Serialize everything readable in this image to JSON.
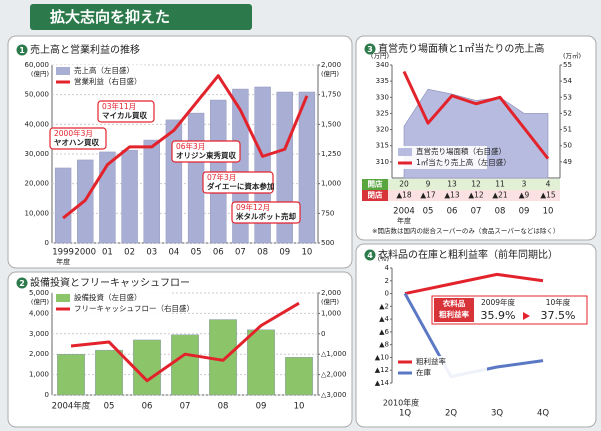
{
  "header": {
    "title": "拡大志向を抑えた"
  },
  "chart_data": [
    {
      "type": "combo",
      "number": 1,
      "title": "売上高と営業利益の推移",
      "categories": [
        "1999",
        "2000",
        "01",
        "02",
        "03",
        "04",
        "05",
        "06",
        "07",
        "08",
        "09",
        "10"
      ],
      "x_unit": "年度",
      "y_unit": "(億円)",
      "y2_unit": "(億円)",
      "ylim": [
        0,
        60000
      ],
      "yticks": [
        0,
        {
          "value": 10000,
          "label": "10,000"
        },
        {
          "value": 20000,
          "label": "20,000"
        },
        {
          "value": 30000,
          "label": "30,000"
        },
        {
          "value": 40000,
          "label": "40,000"
        },
        {
          "value": 50000,
          "label": "50,000"
        },
        {
          "value": 60000,
          "label": "60,000"
        }
      ],
      "y2lim": [
        500,
        2000
      ],
      "y2ticks": [
        500,
        750,
        {
          "value": 1000,
          "label": "1,000"
        },
        {
          "value": 1250,
          "label": "1,250"
        },
        {
          "value": 1500,
          "label": "1,500"
        },
        {
          "value": 1750,
          "label": "1,750"
        },
        {
          "value": 2000,
          "label": "2,000"
        }
      ],
      "grid": true,
      "series": [
        {
          "name": "売上高（左目盛）",
          "type": "bar",
          "color": "#a9aed4",
          "values": [
            25300,
            28000,
            30700,
            31300,
            34700,
            41500,
            43800,
            48200,
            51900,
            52600,
            50900,
            50900
          ]
        },
        {
          "name": "営業利益（右目盛）",
          "type": "line",
          "axis": "y2",
          "color": "#e3232c",
          "values": [
            710,
            860,
            1160,
            1310,
            1310,
            1450,
            1680,
            1910,
            1620,
            1230,
            1290,
            1740
          ]
        }
      ],
      "annotations": [
        {
          "date": "2000年3月",
          "event": "ヤオハン買収"
        },
        {
          "date": "03年11月",
          "event": "マイカル買収"
        },
        {
          "date": "06年3月",
          "event": "オリジン東秀買収"
        },
        {
          "date": "07年3月",
          "event": "ダイエーに資本参加"
        },
        {
          "date": "09年12月",
          "event": "米タルボット売却"
        }
      ]
    },
    {
      "type": "combo",
      "number": 2,
      "title": "設備投資とフリーキャッシュフロー",
      "categories": [
        "2004年度",
        "05",
        "06",
        "07",
        "08",
        "09",
        "10"
      ],
      "y_unit": "(億円)",
      "y2_unit": "(億円)",
      "ylim": [
        0,
        5000
      ],
      "yticks": [
        0,
        {
          "value": 1000,
          "label": "1,000"
        },
        {
          "value": 2000,
          "label": "2,000"
        },
        {
          "value": 3000,
          "label": "3,000"
        },
        {
          "value": 4000,
          "label": "4,000"
        },
        {
          "value": 5000,
          "label": "5,000"
        }
      ],
      "y2lim": [
        -3000,
        2000
      ],
      "y2ticks": [
        {
          "value": -3000,
          "label": "△3,000"
        },
        {
          "value": -2000,
          "label": "△2,000"
        },
        {
          "value": -1000,
          "label": "△1,000"
        },
        0,
        {
          "value": 1000,
          "label": "1,000"
        },
        {
          "value": 2000,
          "label": "2,000"
        }
      ],
      "grid": true,
      "series": [
        {
          "name": "設備投資（左目盛）",
          "type": "bar",
          "color": "#8cc46a",
          "values": [
            2000,
            2200,
            2700,
            2950,
            3700,
            3200,
            1850
          ]
        },
        {
          "name": "フリーキャッシュフロー（右目盛）",
          "type": "line",
          "axis": "y2",
          "color": "#e3232c",
          "values": [
            -600,
            -400,
            -2300,
            -1000,
            -1300,
            400,
            1500
          ]
        }
      ]
    },
    {
      "type": "area_line",
      "number": 3,
      "title": "直営売り場面積と1㎡当たりの売上高",
      "categories": [
        "2004",
        "05",
        "06",
        "07",
        "08",
        "09",
        "10"
      ],
      "x_unit": "年度",
      "y_unit": "(万円)",
      "y2_unit": "(万㎡)",
      "ylim": [
        305,
        340
      ],
      "yticks": [
        310,
        315,
        320,
        325,
        330,
        335,
        340
      ],
      "y2lim": [
        48,
        55
      ],
      "y2ticks": [
        49,
        50,
        51,
        52,
        53,
        54,
        55
      ],
      "grid": false,
      "series": [
        {
          "name": "直営売り場面積（右目盛）",
          "type": "area",
          "axis": "y2",
          "color": "#b7bbdf",
          "values": [
            51.2,
            53.5,
            53.2,
            52.8,
            53.0,
            52.0,
            52.0
          ]
        },
        {
          "name": "1㎡当たり売上高（左目盛）",
          "type": "line",
          "color": "#e3232c",
          "values": [
            338,
            322,
            330.5,
            328,
            330,
            320.5,
            311
          ]
        }
      ],
      "table": [
        {
          "label": "開店",
          "values": [
            20,
            9,
            13,
            12,
            11,
            3,
            4
          ]
        },
        {
          "label": "閉店",
          "values": [
            -18,
            -17,
            -13,
            -12,
            -21,
            -9,
            -15
          ],
          "value_labels": [
            "▲18",
            "▲17",
            "▲13",
            "▲12",
            "▲21",
            "▲9",
            "▲15"
          ]
        }
      ],
      "note": "※開店数は国内の総合スーパーのみ（食品スーパーなどは除く）"
    },
    {
      "type": "line",
      "number": 4,
      "title": "衣料品の在庫と粗利益率（前年同期比）",
      "categories": [
        "1Q",
        "2Q",
        "3Q",
        "4Q"
      ],
      "x_unit": "2010年度",
      "y_unit": "(%)",
      "ylim": [
        -14,
        4
      ],
      "yticks": [
        {
          "value": -14,
          "label": "▲14"
        },
        {
          "value": -12,
          "label": "▲12"
        },
        {
          "value": -10,
          "label": "▲10"
        },
        {
          "value": -8,
          "label": "▲8"
        },
        {
          "value": -6,
          "label": "▲6"
        },
        {
          "value": -4,
          "label": "▲4"
        },
        {
          "value": -2,
          "label": "▲2"
        },
        0,
        2,
        4
      ],
      "grid": false,
      "series": [
        {
          "name": "粗利益率",
          "type": "line",
          "color": "#e3232c",
          "values": [
            0,
            1.5,
            3,
            2
          ]
        },
        {
          "name": "在庫",
          "type": "line",
          "color": "#5a78c4",
          "values": [
            0,
            -13,
            -11.5,
            -10.5
          ]
        }
      ],
      "callout": {
        "label_lines": [
          "衣料品",
          "粗利益率"
        ],
        "from_period": "2009年度",
        "from_value": "35.9%",
        "to_period": "10年度",
        "to_value": "37.5%"
      }
    }
  ]
}
